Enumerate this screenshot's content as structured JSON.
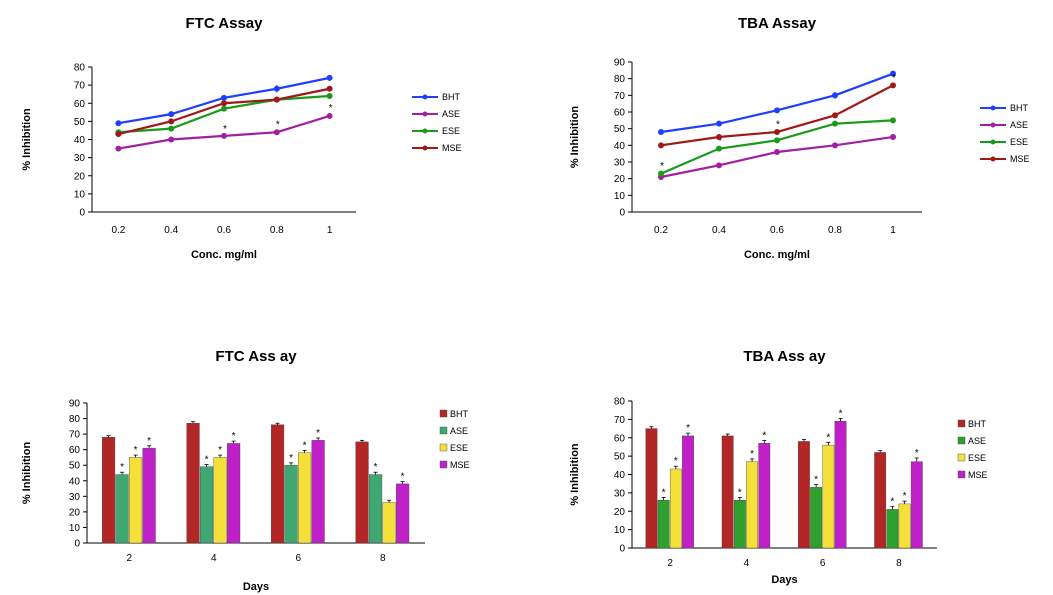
{
  "chart_data": [
    {
      "type": "line",
      "title": "FTC Assay",
      "xlabel": "Conc. mg/ml",
      "ylabel": "% Inhibition",
      "categories": [
        "0.2",
        "0.4",
        "0.6",
        "0.8",
        "1"
      ],
      "ylim": [
        0,
        80
      ],
      "yticks": [
        "0",
        "10",
        "20",
        "30",
        "40",
        "50",
        "60",
        "70",
        "80"
      ],
      "grid": false,
      "legend_position": "right",
      "series": [
        {
          "name": "BHT",
          "color": "#1f3fff",
          "values": [
            49,
            54,
            63,
            68,
            74
          ],
          "errors": [
            1.5,
            1.5,
            1.5,
            2,
            1.5
          ],
          "stars": [
            false,
            false,
            false,
            false,
            false
          ]
        },
        {
          "name": "ASE",
          "color": "#a020a0",
          "values": [
            35,
            40,
            42,
            44,
            53
          ],
          "errors": [
            1,
            1,
            1,
            1.5,
            1.5
          ],
          "stars": [
            false,
            false,
            true,
            true,
            true
          ]
        },
        {
          "name": "ESE",
          "color": "#1a9a1a",
          "values": [
            44,
            46,
            57,
            62,
            64
          ],
          "errors": [
            1.5,
            1.5,
            1.5,
            1.5,
            1.5
          ],
          "stars": [
            false,
            false,
            false,
            false,
            false
          ]
        },
        {
          "name": "MSE",
          "color": "#a01818",
          "values": [
            43,
            50,
            60,
            62,
            68
          ],
          "errors": [
            1.5,
            1.5,
            1.5,
            1.5,
            1.5
          ],
          "stars": [
            false,
            false,
            false,
            false,
            false
          ]
        }
      ]
    },
    {
      "type": "line",
      "title": "TBA Assay",
      "xlabel": "Conc. mg/ml",
      "ylabel": "% Inhibition",
      "categories": [
        "0.2",
        "0.4",
        "0.6",
        "0.8",
        "1"
      ],
      "ylim": [
        0,
        90
      ],
      "yticks": [
        "0",
        "10",
        "20",
        "30",
        "40",
        "50",
        "60",
        "70",
        "80",
        "90"
      ],
      "grid": false,
      "legend_position": "right",
      "series": [
        {
          "name": "BHT",
          "color": "#1f3fff",
          "values": [
            48,
            53,
            61,
            70,
            83
          ],
          "errors": [
            1.5,
            1.5,
            1.5,
            2,
            1.5
          ],
          "stars": [
            false,
            false,
            false,
            false,
            false
          ]
        },
        {
          "name": "ASE",
          "color": "#a020a0",
          "values": [
            21,
            28,
            36,
            40,
            45
          ],
          "errors": [
            1,
            1,
            1,
            1,
            1
          ],
          "stars": [
            false,
            false,
            false,
            false,
            false
          ]
        },
        {
          "name": "ESE",
          "color": "#1a9a1a",
          "values": [
            23,
            38,
            43,
            53,
            55
          ],
          "errors": [
            1.5,
            1.5,
            1.5,
            1.5,
            1.5
          ],
          "stars": [
            true,
            true,
            false,
            false,
            false
          ]
        },
        {
          "name": "MSE",
          "color": "#a01818",
          "values": [
            40,
            45,
            48,
            58,
            76
          ],
          "errors": [
            1.5,
            1.5,
            1.5,
            1.5,
            1.5
          ],
          "stars": [
            false,
            false,
            true,
            false,
            true
          ]
        }
      ]
    },
    {
      "type": "bar",
      "title": "FTC Ass ay",
      "xlabel": "Days",
      "ylabel": "% Inhibition",
      "categories": [
        "2",
        "4",
        "6",
        "8"
      ],
      "ylim": [
        0,
        90
      ],
      "yticks": [
        "0",
        "10",
        "20",
        "30",
        "40",
        "50",
        "60",
        "70",
        "80",
        "90"
      ],
      "grid": false,
      "legend_position": "right",
      "series": [
        {
          "name": "BHT",
          "color": "#b32626",
          "values": [
            68,
            77,
            76,
            65
          ],
          "errors": [
            1,
            1,
            1,
            1
          ],
          "stars": [
            false,
            false,
            false,
            false
          ]
        },
        {
          "name": "ASE",
          "color": "#3fa872",
          "values": [
            44,
            49,
            50,
            44
          ],
          "errors": [
            1.5,
            1.5,
            1.5,
            1.5
          ],
          "stars": [
            true,
            true,
            true,
            true
          ]
        },
        {
          "name": "ESE",
          "color": "#f5e03a",
          "values": [
            55,
            55,
            58,
            26
          ],
          "errors": [
            1.5,
            1.5,
            1.5,
            1.5
          ],
          "stars": [
            true,
            true,
            true,
            false
          ]
        },
        {
          "name": "MSE",
          "color": "#c020c8",
          "values": [
            61,
            64,
            66,
            38
          ],
          "errors": [
            1.5,
            1.5,
            1.5,
            1.5
          ],
          "stars": [
            true,
            true,
            true,
            true
          ]
        }
      ]
    },
    {
      "type": "bar",
      "title": "TBA Ass ay",
      "xlabel": "Days",
      "ylabel": "% Inhibition",
      "categories": [
        "2",
        "4",
        "6",
        "8"
      ],
      "ylim": [
        0,
        80
      ],
      "yticks": [
        "0",
        "10",
        "20",
        "30",
        "40",
        "50",
        "60",
        "70",
        "80"
      ],
      "grid": false,
      "legend_position": "right",
      "series": [
        {
          "name": "BHT",
          "color": "#b32626",
          "values": [
            65,
            61,
            58,
            52
          ],
          "errors": [
            1,
            1,
            1,
            1
          ],
          "stars": [
            false,
            false,
            false,
            false
          ]
        },
        {
          "name": "ASE",
          "color": "#2ea02e",
          "values": [
            26,
            26,
            33,
            21
          ],
          "errors": [
            1.5,
            1.5,
            1.5,
            1.5
          ],
          "stars": [
            true,
            true,
            true,
            true
          ]
        },
        {
          "name": "ESE",
          "color": "#f5e03a",
          "values": [
            43,
            47,
            56,
            24
          ],
          "errors": [
            1.5,
            1.5,
            1.5,
            1.5
          ],
          "stars": [
            true,
            true,
            true,
            true
          ]
        },
        {
          "name": "MSE",
          "color": "#c020c8",
          "values": [
            61,
            57,
            69,
            47
          ],
          "errors": [
            1.5,
            1.5,
            1.5,
            2
          ],
          "stars": [
            true,
            true,
            true,
            true
          ]
        }
      ]
    }
  ]
}
